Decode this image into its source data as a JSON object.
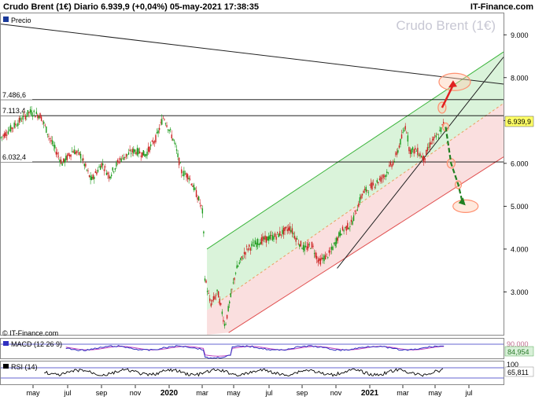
{
  "header": {
    "title": "Crudo Brent (1€) Diario 6.939,9 (+0,04%) 05-may-2021 17:38:35",
    "brand": "IT-Finance.com",
    "watermark": "Crudo Brent (1€)",
    "legend_price": "Precio",
    "footer_brand": "© IT-Finance.com"
  },
  "colors": {
    "candle_up": "#1a9a1a",
    "candle_down": "#cc2222",
    "channel_upper": "#3cb43c",
    "channel_lower": "#e05050",
    "channel_fill_green": "#d6f2d6",
    "channel_fill_red": "#f9dcdc",
    "price_tag_bg": "#ffff66",
    "macd_line": "#3030c0",
    "signal_line": "#c040c0",
    "rsi_line": "#000000",
    "arrow_up": "#e02020",
    "arrow_down": "#208020",
    "target_circle": "#ff9070"
  },
  "chart_data": [
    {
      "type": "candlestick",
      "title": "Crudo Brent (1€)",
      "ylim": [
        2000,
        9500
      ],
      "y_ticks": [
        "9.000",
        "8.000",
        "7.000",
        "6.000",
        "5.000",
        "4.000",
        "3.000"
      ],
      "x_ticks": [
        "may",
        "jul",
        "sep",
        "nov",
        "2020",
        "mar",
        "may",
        "jul",
        "sep",
        "nov",
        "2021",
        "mar",
        "may",
        "jul"
      ],
      "last_price": "6.939,9",
      "price_profile": [
        [
          0,
          6600
        ],
        [
          4,
          6900
        ],
        [
          8,
          7200
        ],
        [
          11,
          7113
        ],
        [
          14,
          6500
        ],
        [
          17,
          6000
        ],
        [
          20,
          6300
        ],
        [
          22,
          6200
        ],
        [
          25,
          5600
        ],
        [
          28,
          6000
        ],
        [
          30,
          5700
        ],
        [
          33,
          6100
        ],
        [
          37,
          6300
        ],
        [
          40,
          6200
        ],
        [
          43,
          6600
        ],
        [
          45,
          7100
        ],
        [
          48,
          6500
        ],
        [
          50,
          5800
        ],
        [
          52,
          5700
        ],
        [
          55,
          5100
        ],
        [
          56,
          4800
        ],
        [
          56.3,
          3400
        ],
        [
          58,
          2700
        ],
        [
          60,
          3000
        ],
        [
          62,
          2200
        ],
        [
          65,
          3500
        ],
        [
          68,
          4000
        ],
        [
          72,
          4200
        ],
        [
          76,
          4300
        ],
        [
          80,
          4500
        ],
        [
          82,
          4200
        ],
        [
          84,
          4000
        ],
        [
          86,
          4100
        ],
        [
          88,
          3700
        ],
        [
          91,
          3900
        ],
        [
          94,
          4400
        ],
        [
          97,
          4600
        ],
        [
          100,
          5300
        ],
        [
          103,
          5500
        ],
        [
          106,
          5700
        ],
        [
          109,
          6100
        ],
        [
          112,
          6900
        ],
        [
          113,
          6300
        ],
        [
          115,
          6300
        ],
        [
          117,
          6100
        ],
        [
          119,
          6500
        ],
        [
          121,
          6650
        ],
        [
          122.5,
          6940
        ]
      ],
      "levels": [
        {
          "label": "7.486,6",
          "value": 7486.6
        },
        {
          "label": "7.113,4",
          "value": 7113.4
        },
        {
          "label": "6.032,4",
          "value": 6032.4
        }
      ],
      "channel": {
        "upper": {
          "from": [
            57,
            4000
          ],
          "to": [
            139,
            8600
          ]
        },
        "lower": {
          "from": [
            63,
            2050
          ],
          "to": [
            139,
            6150
          ]
        },
        "middle": {
          "from": [
            60,
            2750
          ],
          "to": [
            139,
            7400
          ]
        }
      },
      "trendlines": [
        {
          "from": [
            0,
            9250
          ],
          "to": [
            139,
            7850
          ]
        },
        {
          "from": [
            93,
            3550
          ],
          "to": [
            139,
            8480
          ]
        }
      ],
      "targets": [
        {
          "x": 125.5,
          "y": 7900
        },
        {
          "x": 122,
          "y": 7300
        },
        {
          "x": 123,
          "y": 6850
        },
        {
          "x": 124.5,
          "y": 6000
        },
        {
          "x": 126.5,
          "y": 5500
        },
        {
          "x": 128.5,
          "y": 5000
        }
      ]
    },
    {
      "type": "line",
      "title": "MACD (12 26 9)",
      "value_labels": [
        "90.000",
        "84,954"
      ],
      "series": [
        {
          "name": "MACD"
        },
        {
          "name": "Señal"
        }
      ]
    },
    {
      "type": "line",
      "title": "RSI (14)",
      "value_labels": [
        "100",
        "65,811"
      ],
      "series": [
        {
          "name": "RSI"
        }
      ]
    }
  ]
}
